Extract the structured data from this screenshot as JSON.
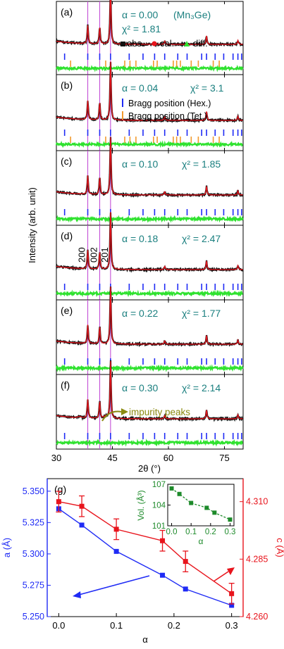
{
  "colors": {
    "observed": "#111111",
    "calculated": "#e8141c",
    "difference": "#2fe22f",
    "bragg_hex": "#1f2bf5",
    "bragg_tet": "#f29a2e",
    "peak_lines": "#c34fd6",
    "annotation": "#1a7f7f",
    "impurity": "#8a8a10",
    "a_axis": "#1f2bf5",
    "c_axis": "#e8141c",
    "volume": "#1d8a2a"
  },
  "xrd": {
    "xlabel": "2θ (°)",
    "ylabel": "Intensity (arb. unit)",
    "xlim": [
      30,
      80
    ],
    "x_ticks": [
      "30",
      "45",
      "60",
      "75"
    ],
    "x_tick_values": [
      30,
      45,
      60,
      75
    ],
    "peak_line_positions": [
      38.4,
      41.6,
      44.5
    ],
    "peak_labels": [
      "200",
      "002",
      "201"
    ],
    "legend": {
      "obs": "obs.",
      "cal": "cal.",
      "diff": "diff."
    },
    "bragg_legend": {
      "hex": "Bragg position (Hex.)",
      "tet": "Bragg position (Tet.)"
    },
    "impurity_label": "impurity peaks",
    "panels": [
      {
        "letter": "(a)",
        "alpha": "α = 0.00",
        "chi": "χ² = 1.81",
        "extra": "(Mn₃Ge)",
        "tet": true
      },
      {
        "letter": "(b)",
        "alpha": "α = 0.04",
        "chi": "χ² = 3.1",
        "extra": "",
        "tet": true
      },
      {
        "letter": "(c)",
        "alpha": "α = 0.10",
        "chi": "χ² = 1.85",
        "extra": "",
        "tet": false
      },
      {
        "letter": "(d)",
        "alpha": "α = 0.18",
        "chi": "χ² = 2.47",
        "extra": "",
        "tet": false
      },
      {
        "letter": "(e)",
        "alpha": "α = 0.22",
        "chi": "χ² = 1.77",
        "extra": "",
        "tet": false
      },
      {
        "letter": "(f)",
        "alpha": "α = 0.30",
        "chi": "χ² = 2.14",
        "extra": "",
        "tet": false
      }
    ],
    "hex_positions": [
      32.2,
      38.4,
      41.6,
      44.5,
      49.5,
      53.2,
      56.3,
      59.0,
      62.5,
      65.0,
      68.9,
      70.2,
      72.5,
      74.8,
      77.3,
      78.6,
      79.6
    ],
    "tet_positions": [
      33.8,
      43.2,
      48.3,
      49.7,
      51.3,
      56.0,
      57.0,
      61.3,
      62.2,
      63.2,
      66.1,
      68.0,
      72.0,
      73.6
    ],
    "peaks": [
      {
        "x": 38.4,
        "h": 0.32
      },
      {
        "x": 41.6,
        "h": 0.3
      },
      {
        "x": 44.5,
        "h": 1.0
      },
      {
        "x": 59.0,
        "h": 0.06
      },
      {
        "x": 70.2,
        "h": 0.15
      },
      {
        "x": 78.6,
        "h": 0.07
      }
    ]
  },
  "chart_data": [
    {
      "type": "line",
      "panel": "(g)",
      "xlabel": "α",
      "ylabel_left": "a (Å)",
      "ylabel_right": "c (Å)",
      "xlim": [
        -0.02,
        0.32
      ],
      "ylim_left": [
        5.25,
        5.36
      ],
      "ylim_right": [
        4.26,
        4.32
      ],
      "x_ticks": [
        "0.0",
        "0.1",
        "0.2",
        "0.3"
      ],
      "x_tick_values": [
        0.0,
        0.1,
        0.2,
        0.3
      ],
      "left_ticks": [
        "5.250",
        "5.275",
        "5.300",
        "5.325",
        "5.350"
      ],
      "left_tick_values": [
        5.25,
        5.275,
        5.3,
        5.325,
        5.35
      ],
      "right_ticks": [
        "4.260",
        "4.285",
        "4.310"
      ],
      "right_tick_values": [
        4.26,
        4.285,
        4.31
      ],
      "series": [
        {
          "axis": "left",
          "x": [
            0.0,
            0.04,
            0.1,
            0.18,
            0.22,
            0.3
          ],
          "values": [
            5.336,
            5.323,
            5.302,
            5.283,
            5.272,
            5.259
          ]
        },
        {
          "axis": "right",
          "x": [
            0.0,
            0.04,
            0.1,
            0.18,
            0.22,
            0.3
          ],
          "values": [
            4.31,
            4.308,
            4.298,
            4.293,
            4.284,
            4.27
          ],
          "errors": [
            0.0045,
            0.0045,
            0.0045,
            0.0045,
            0.0045,
            0.0045
          ]
        }
      ]
    },
    {
      "type": "line",
      "inset": true,
      "xlabel": "α",
      "ylabel": "Vol. (Å³)",
      "xlim": [
        -0.02,
        0.32
      ],
      "ylim": [
        101,
        107
      ],
      "x_ticks": [
        "0.0",
        "0.1",
        "0.2",
        "0.3"
      ],
      "x_tick_values": [
        0.0,
        0.1,
        0.2,
        0.3
      ],
      "y_ticks": [
        "101",
        "104",
        "107"
      ],
      "y_tick_values": [
        101,
        104,
        107
      ],
      "series": [
        {
          "x": [
            0.0,
            0.04,
            0.1,
            0.18,
            0.22,
            0.3
          ],
          "values": [
            106.4,
            105.6,
            104.3,
            103.6,
            102.9,
            101.9
          ]
        }
      ]
    }
  ]
}
